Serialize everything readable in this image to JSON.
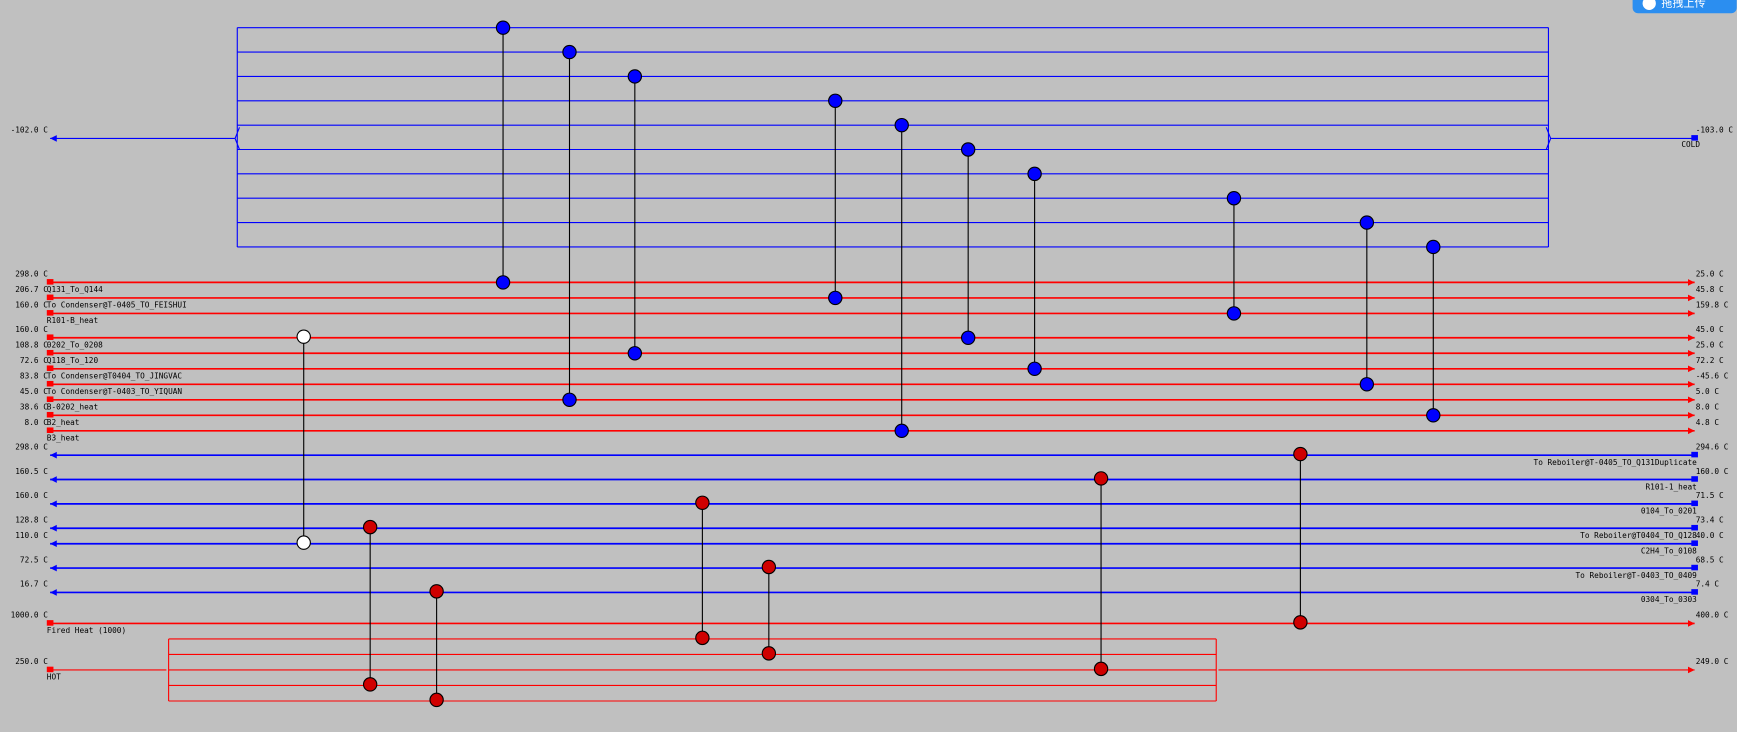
{
  "upload_button": "拖拽上传",
  "utilities": {
    "cold": {
      "name": "COLD",
      "left_temp": "-102.0 C",
      "right_temp": "-103.0 C"
    },
    "fired": {
      "name": "Fired Heat (1000)",
      "left_temp": "1000.0 C",
      "right_temp": "400.0 C"
    },
    "hot": {
      "name": "HOT",
      "left_temp": "250.0 C",
      "right_temp": "249.0 C"
    }
  },
  "hot_streams": [
    {
      "name": "Q131_To_Q144",
      "left_temp": "298.0 C",
      "right_temp": "25.0 C"
    },
    {
      "name": "To Condenser@T-0405_TO_FEISHUI",
      "left_temp": "206.7 C",
      "right_temp": "45.8 C"
    },
    {
      "name": "R101-B_heat",
      "left_temp": "160.0 C",
      "right_temp": "159.8 C"
    },
    {
      "name": "0202_To_0208",
      "left_temp": "160.0 C",
      "right_temp": "45.0 C"
    },
    {
      "name": "Q118_To_120",
      "left_temp": "108.8 C",
      "right_temp": "25.0 C"
    },
    {
      "name": "To Condenser@T0404_TO_JINGVAC",
      "left_temp": "72.6 C",
      "right_temp": "72.2 C"
    },
    {
      "name": "To Condenser@T-0403_TO_YIQUAN",
      "left_temp": "83.8 C",
      "right_temp": "-45.6 C"
    },
    {
      "name": "B-0202_heat",
      "left_temp": "45.0 C",
      "right_temp": "5.0 C"
    },
    {
      "name": "B2_heat",
      "left_temp": "38.6 C",
      "right_temp": "8.0 C"
    },
    {
      "name": "B3_heat",
      "left_temp": "8.0 C",
      "right_temp": "4.8 C"
    }
  ],
  "cold_streams": [
    {
      "name": "To Reboiler@T-0405_TO_Q131Duplicate",
      "left_temp": "298.0 C",
      "right_temp": "294.6 C"
    },
    {
      "name": "R101-1_heat",
      "left_temp": "160.5 C",
      "right_temp": "160.0 C"
    },
    {
      "name": "0104_To_0201",
      "left_temp": "160.0 C",
      "right_temp": "71.5 C"
    },
    {
      "name": "To Reboiler@T0404_TO_Q128",
      "left_temp": "128.8 C",
      "right_temp": "73.4 C"
    },
    {
      "name": "C2H4_To_0108",
      "left_temp": "110.0 C",
      "right_temp": "40.0 C"
    },
    {
      "name": "To Reboiler@T-0403_TO_0409",
      "left_temp": "72.5 C",
      "right_temp": "68.5 C"
    },
    {
      "name": "0304_To_0303",
      "left_temp": "16.7 C",
      "right_temp": "7.4 C"
    }
  ]
}
